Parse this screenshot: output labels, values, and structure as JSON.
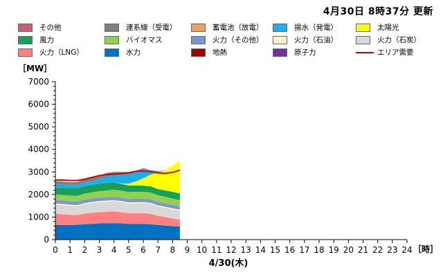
{
  "header": {
    "updated": "4月30日  8時37分  更新"
  },
  "legend": [
    {
      "label": "その他",
      "color": "#c8607a",
      "kind": "box"
    },
    {
      "label": "連系線（受電）",
      "color": "#7f7f7f",
      "kind": "box"
    },
    {
      "label": "蓄電池（放電）",
      "color": "#f0a060",
      "kind": "box"
    },
    {
      "label": "揚水（発電）",
      "color": "#1ab0ee",
      "kind": "box"
    },
    {
      "label": "太陽光",
      "color": "#ffff00",
      "kind": "box"
    },
    {
      "label": "風力",
      "color": "#16a05a",
      "kind": "box"
    },
    {
      "label": "バイオマス",
      "color": "#92d050",
      "kind": "box"
    },
    {
      "label": "火力（その他）",
      "color": "#7a96d4",
      "kind": "box"
    },
    {
      "label": "火力（石油）",
      "color": "#fff2cc",
      "kind": "box"
    },
    {
      "label": "火力（石炭）",
      "color": "#d9d9d9",
      "kind": "box"
    },
    {
      "label": "火力（LNG）",
      "color": "#ff8080",
      "kind": "box"
    },
    {
      "label": "水力",
      "color": "#0070c0",
      "kind": "box"
    },
    {
      "label": "地熱",
      "color": "#a00000",
      "kind": "box"
    },
    {
      "label": "原子力",
      "color": "#7030a0",
      "kind": "box"
    },
    {
      "label": "エリア需要",
      "color": "#d40000",
      "kind": "line"
    }
  ],
  "chart_data": {
    "type": "area",
    "stacked": true,
    "ylabel": "［MW］",
    "xunit": "［時］",
    "xlabel": "4/30(木)",
    "ylim": [
      0,
      7000
    ],
    "yticks": [
      0,
      1000,
      2000,
      3000,
      4000,
      5000,
      6000,
      7000
    ],
    "xlim": [
      0,
      24
    ],
    "xticks": [
      "0",
      "1",
      "2",
      "3",
      "4",
      "5",
      "6",
      "7",
      "8",
      "9",
      "10",
      "11",
      "12",
      "13",
      "14",
      "15",
      "16",
      "17",
      "18",
      "19",
      "20",
      "21",
      "22",
      "23",
      "24"
    ],
    "x": [
      0,
      0.5,
      1,
      1.5,
      2,
      2.5,
      3,
      3.5,
      4,
      4.5,
      5,
      5.5,
      6,
      6.5,
      7,
      7.5,
      8,
      8.5
    ],
    "series": [
      {
        "name": "水力",
        "color": "#0070c0",
        "values": [
          650,
          640,
          650,
          660,
          680,
          700,
          720,
          720,
          730,
          720,
          700,
          700,
          700,
          680,
          650,
          620,
          600,
          580
        ]
      },
      {
        "name": "火力（LNG）",
        "color": "#ff8080",
        "values": [
          500,
          480,
          450,
          430,
          470,
          490,
          500,
          510,
          520,
          500,
          470,
          470,
          470,
          460,
          400,
          380,
          340,
          300
        ]
      },
      {
        "name": "火力（石炭）",
        "color": "#d9d9d9",
        "values": [
          400,
          410,
          400,
          390,
          420,
          430,
          440,
          450,
          450,
          440,
          430,
          440,
          440,
          440,
          420,
          410,
          400,
          400
        ]
      },
      {
        "name": "火力（石油）",
        "color": "#fff2cc",
        "values": [
          50,
          50,
          50,
          50,
          50,
          50,
          50,
          50,
          50,
          50,
          50,
          50,
          50,
          50,
          50,
          50,
          50,
          50
        ]
      },
      {
        "name": "火力（その他）",
        "color": "#7a96d4",
        "values": [
          150,
          150,
          150,
          150,
          150,
          150,
          150,
          150,
          150,
          150,
          150,
          150,
          150,
          150,
          150,
          150,
          150,
          150
        ]
      },
      {
        "name": "バイオマス",
        "color": "#92d050",
        "values": [
          250,
          250,
          250,
          260,
          270,
          280,
          290,
          300,
          310,
          310,
          310,
          310,
          310,
          310,
          300,
          290,
          280,
          270
        ]
      },
      {
        "name": "風力",
        "color": "#16a05a",
        "values": [
          300,
          310,
          320,
          330,
          340,
          330,
          330,
          330,
          320,
          300,
          290,
          280,
          270,
          270,
          270,
          280,
          300,
          300
        ]
      },
      {
        "name": "太陽光",
        "color": "#ffff00",
        "values": [
          0,
          0,
          0,
          0,
          0,
          0,
          0,
          0,
          0,
          20,
          80,
          180,
          330,
          520,
          750,
          900,
          1150,
          1450
        ]
      },
      {
        "name": "揚水（発電）",
        "color": "#1ab0ee",
        "values": [
          150,
          150,
          150,
          150,
          150,
          160,
          200,
          300,
          320,
          380,
          420,
          400,
          400,
          200,
          50,
          0,
          0,
          0
        ]
      },
      {
        "name": "連系線（受電）",
        "color": "#7f7f7f",
        "values": [
          150,
          130,
          130,
          130,
          150,
          150,
          150,
          150,
          150,
          130,
          100,
          80,
          50,
          0,
          0,
          0,
          0,
          0
        ]
      }
    ],
    "demand": {
      "name": "エリア需要",
      "color": "#d40000",
      "values": [
        2650,
        2640,
        2620,
        2620,
        2680,
        2760,
        2840,
        2880,
        2900,
        2920,
        2950,
        3030,
        3040,
        3010,
        2960,
        2940,
        2980,
        3080
      ]
    }
  }
}
